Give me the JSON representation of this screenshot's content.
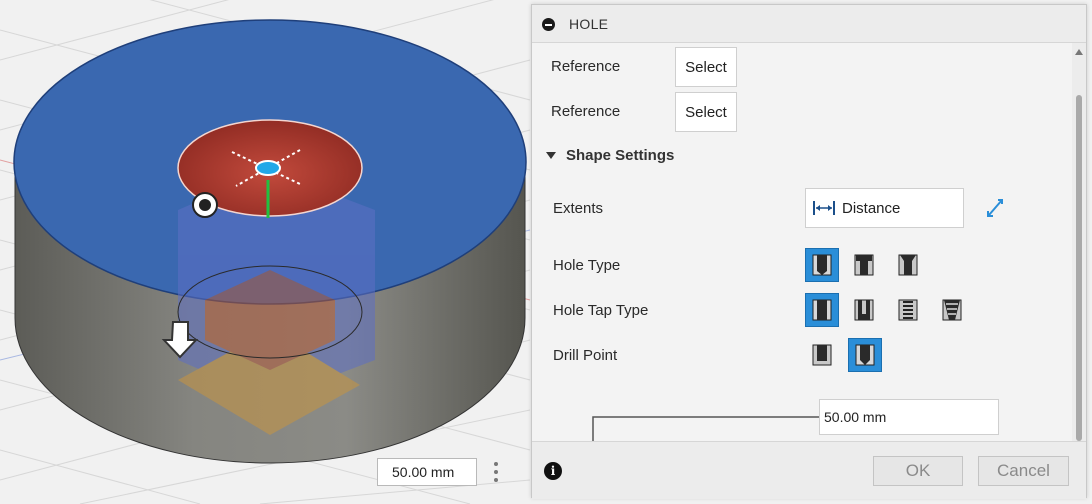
{
  "viewport": {
    "dimension_value": "50.00 mm",
    "colors": {
      "top_face": "#3a68b0",
      "hole": "#b23a2e",
      "body": "#6e6e68"
    }
  },
  "dialog": {
    "title": "HOLE",
    "references": [
      {
        "label": "Reference",
        "button": "Select"
      },
      {
        "label": "Reference",
        "button": "Select"
      }
    ],
    "section": {
      "label": "Shape Settings",
      "expanded": true
    },
    "extents": {
      "label": "Extents",
      "value": "Distance"
    },
    "hole_type": {
      "label": "Hole Type",
      "options": [
        "simple-hole-icon",
        "counterbore-icon",
        "countersink-icon"
      ],
      "selected": 0
    },
    "hole_tap_type": {
      "label": "Hole Tap Type",
      "options": [
        "simple-tap-icon",
        "clearance-icon",
        "tapped-icon",
        "taper-tapped-icon"
      ],
      "selected": 0
    },
    "drill_point": {
      "label": "Drill Point",
      "options": [
        "flat-drill-icon",
        "angled-drill-icon"
      ],
      "selected": 1
    },
    "length_value": "50.00 mm",
    "ok_label": "OK",
    "cancel_label": "Cancel",
    "accent_color": "#2a8ed8"
  }
}
